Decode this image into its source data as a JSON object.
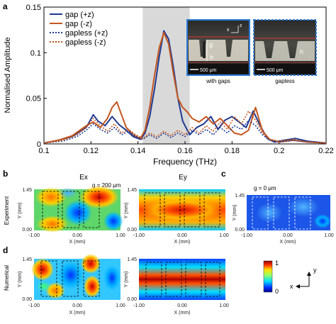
{
  "panels": {
    "a": "a",
    "b": "b",
    "c": "c",
    "d": "d"
  },
  "chart_data": {
    "type": "line",
    "xlabel": "Frequency (THz)",
    "ylabel": "Normalised Amplitude",
    "xlim": [
      0.1,
      0.22
    ],
    "ylim": [
      0,
      0.15
    ],
    "xticks": [
      "0.1",
      "0.12",
      "0.14",
      "0.16",
      "0.18",
      "0.2",
      "0.22"
    ],
    "yticks": [
      "0",
      "0.05",
      "0.1",
      "0.15"
    ],
    "highlight_band": [
      0.142,
      0.162
    ],
    "legend_position": "top-left",
    "series": [
      {
        "name": "gap (+z)",
        "color": "#1f3a93",
        "dash": false,
        "x": [
          0.1,
          0.106,
          0.112,
          0.118,
          0.121,
          0.123,
          0.126,
          0.129,
          0.132,
          0.135,
          0.138,
          0.141,
          0.143,
          0.145,
          0.147,
          0.149,
          0.151,
          0.153,
          0.155,
          0.157,
          0.159,
          0.162,
          0.165,
          0.168,
          0.171,
          0.174,
          0.177,
          0.18,
          0.183,
          0.186,
          0.189,
          0.192,
          0.195,
          0.198,
          0.202,
          0.207,
          0.212,
          0.22
        ],
        "y": [
          0.001,
          0.004,
          0.008,
          0.018,
          0.032,
          0.025,
          0.02,
          0.03,
          0.021,
          0.015,
          0.008,
          0.005,
          0.012,
          0.03,
          0.06,
          0.095,
          0.124,
          0.115,
          0.085,
          0.05,
          0.025,
          0.01,
          0.018,
          0.022,
          0.03,
          0.016,
          0.026,
          0.03,
          0.024,
          0.018,
          0.036,
          0.02,
          0.006,
          0.002,
          0.004,
          0.006,
          0.003,
          0.001
        ]
      },
      {
        "name": "gap (-z)",
        "color": "#c4561e",
        "dash": false,
        "x": [
          0.1,
          0.106,
          0.112,
          0.118,
          0.121,
          0.124,
          0.127,
          0.129,
          0.131,
          0.133,
          0.135,
          0.138,
          0.141,
          0.143,
          0.145,
          0.147,
          0.149,
          0.151,
          0.153,
          0.155,
          0.157,
          0.159,
          0.161,
          0.163,
          0.166,
          0.169,
          0.172,
          0.175,
          0.178,
          0.181,
          0.184,
          0.187,
          0.19,
          0.193,
          0.196,
          0.2,
          0.206,
          0.212,
          0.22
        ],
        "y": [
          0.001,
          0.004,
          0.009,
          0.02,
          0.024,
          0.018,
          0.028,
          0.04,
          0.046,
          0.032,
          0.018,
          0.01,
          0.006,
          0.015,
          0.04,
          0.075,
          0.105,
          0.122,
          0.11,
          0.078,
          0.05,
          0.04,
          0.035,
          0.028,
          0.024,
          0.03,
          0.022,
          0.028,
          0.02,
          0.012,
          0.01,
          0.015,
          0.04,
          0.014,
          0.005,
          0.002,
          0.004,
          0.002,
          0.001
        ]
      },
      {
        "name": "gapless (+z)",
        "color": "#1f3a93",
        "dash": true,
        "x": [
          0.1,
          0.108,
          0.114,
          0.118,
          0.121,
          0.124,
          0.127,
          0.13,
          0.133,
          0.136,
          0.139,
          0.142,
          0.145,
          0.148,
          0.151,
          0.154,
          0.157,
          0.16,
          0.163,
          0.166,
          0.169,
          0.172,
          0.175,
          0.178,
          0.181,
          0.184,
          0.187,
          0.19,
          0.193,
          0.196,
          0.2,
          0.206,
          0.212,
          0.22
        ],
        "y": [
          0.001,
          0.003,
          0.008,
          0.015,
          0.022,
          0.016,
          0.012,
          0.018,
          0.01,
          0.014,
          0.008,
          0.005,
          0.01,
          0.006,
          0.012,
          0.007,
          0.012,
          0.008,
          0.015,
          0.01,
          0.016,
          0.01,
          0.018,
          0.012,
          0.02,
          0.016,
          0.026,
          0.02,
          0.01,
          0.004,
          0.002,
          0.004,
          0.002,
          0.001
        ]
      },
      {
        "name": "gapless (-z)",
        "color": "#c4561e",
        "dash": true,
        "x": [
          0.1,
          0.108,
          0.114,
          0.118,
          0.121,
          0.124,
          0.127,
          0.13,
          0.133,
          0.136,
          0.139,
          0.142,
          0.145,
          0.148,
          0.151,
          0.154,
          0.157,
          0.16,
          0.163,
          0.166,
          0.169,
          0.172,
          0.175,
          0.178,
          0.181,
          0.184,
          0.187,
          0.19,
          0.193,
          0.196,
          0.2,
          0.206,
          0.212,
          0.22
        ],
        "y": [
          0.001,
          0.004,
          0.01,
          0.018,
          0.028,
          0.02,
          0.014,
          0.022,
          0.012,
          0.016,
          0.01,
          0.006,
          0.012,
          0.008,
          0.014,
          0.009,
          0.015,
          0.01,
          0.018,
          0.012,
          0.02,
          0.014,
          0.024,
          0.016,
          0.03,
          0.022,
          0.036,
          0.026,
          0.012,
          0.005,
          0.003,
          0.005,
          0.002,
          0.001
        ]
      }
    ]
  },
  "insets": {
    "with_gaps": {
      "caption": "with gaps",
      "scale": "500 μm",
      "gap_label": "g",
      "height_label": "h",
      "axis_z": "z",
      "axis_x": "x"
    },
    "gapless": {
      "caption": "gapless",
      "scale": "500 μm",
      "height_label": "h"
    }
  },
  "maps": {
    "col_ex": "Ex",
    "col_ey": "Ey",
    "row_experiment": "Experiment",
    "row_numerical": "Numerical",
    "g_label_b": "g = 200 μm",
    "g_label_c": "g = 0 μm",
    "xlabel": "X (mm)",
    "ylabel": "Y (mm)",
    "yticks": [
      "1.45",
      "0.00"
    ],
    "xticks": [
      "-1.00",
      "0.00",
      "1.00"
    ],
    "colorbar_max": "1",
    "colorbar_min": "0",
    "axis_y": "y",
    "axis_x": "x"
  }
}
